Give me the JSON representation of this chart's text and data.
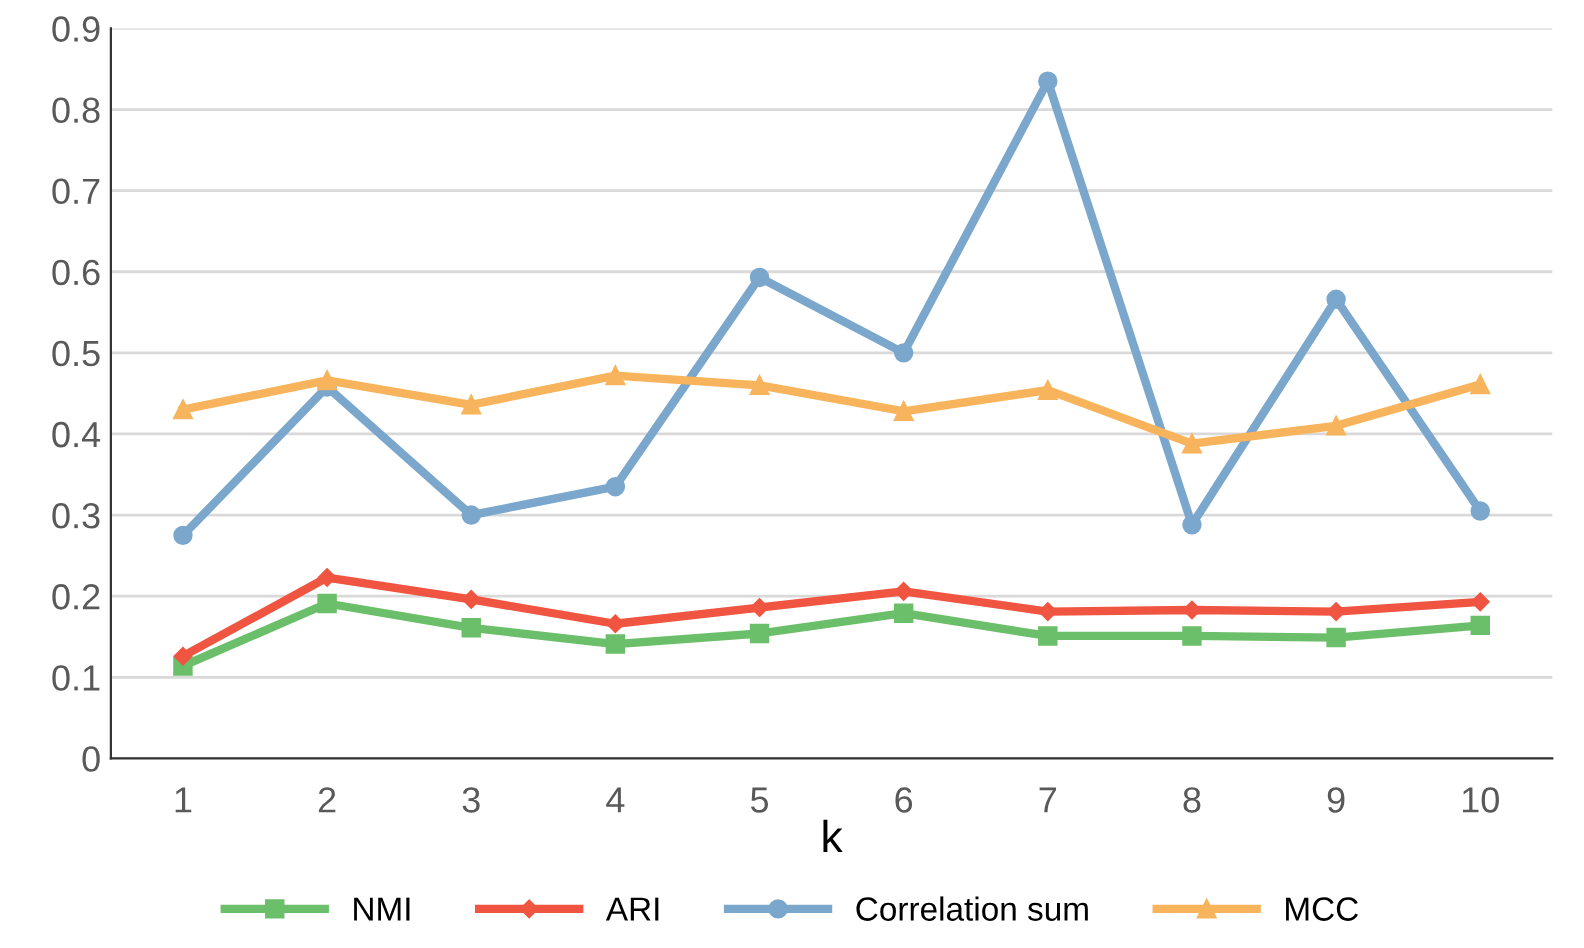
{
  "chart_data": {
    "type": "line",
    "xlabel": "k",
    "categories": [
      "1",
      "2",
      "3",
      "4",
      "5",
      "6",
      "7",
      "8",
      "9",
      "10"
    ],
    "series": [
      {
        "name": "NMI",
        "color": "#6cbf6a",
        "marker": "square",
        "values": [
          0.114,
          0.191,
          0.161,
          0.141,
          0.154,
          0.179,
          0.151,
          0.151,
          0.149,
          0.164
        ]
      },
      {
        "name": "ARI",
        "color": "#ef5540",
        "marker": "diamond",
        "values": [
          0.126,
          0.223,
          0.196,
          0.166,
          0.186,
          0.206,
          0.181,
          0.183,
          0.181,
          0.193
        ]
      },
      {
        "name": "Correlation sum",
        "color": "#7ba7cc",
        "marker": "circle",
        "values": [
          0.275,
          0.458,
          0.3,
          0.335,
          0.593,
          0.5,
          0.835,
          0.288,
          0.566,
          0.305
        ]
      },
      {
        "name": "MCC",
        "color": "#f8b45c",
        "marker": "triangle",
        "values": [
          0.43,
          0.466,
          0.436,
          0.472,
          0.46,
          0.428,
          0.454,
          0.388,
          0.41,
          0.461
        ]
      }
    ],
    "ylim": [
      0,
      0.9
    ],
    "yticks": [
      0,
      0.1,
      0.2,
      0.3,
      0.4,
      0.5,
      0.6,
      0.7,
      0.8,
      0.9
    ],
    "grid": "y",
    "legend": "bottom",
    "line_style": "solid"
  }
}
